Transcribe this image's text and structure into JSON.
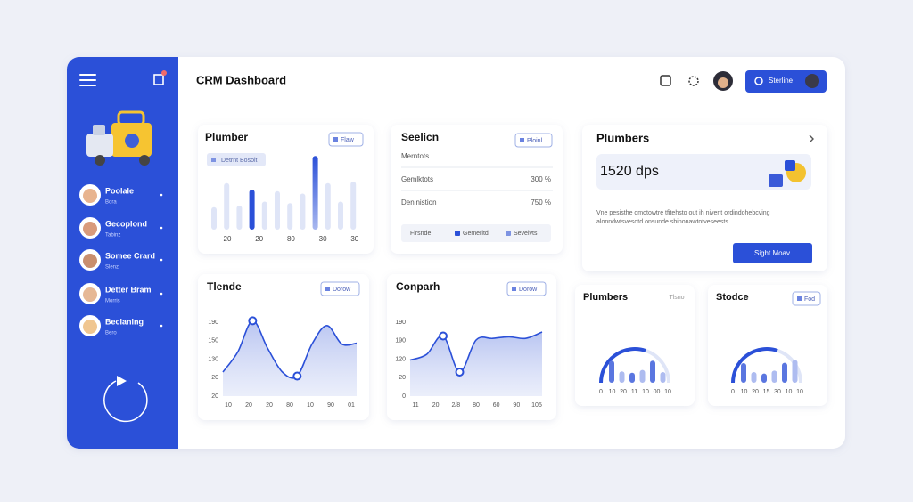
{
  "header": {
    "title": "CRM Dashboard",
    "search_button": "Sterline"
  },
  "sidebar": {
    "contacts": [
      {
        "name": "Poolale",
        "sub": "Bora"
      },
      {
        "name": "Gecoplond",
        "sub": "Tabinz"
      },
      {
        "name": "Somee Crard",
        "sub": "Slenz"
      },
      {
        "name": "Detter Bram",
        "sub": "Morris"
      },
      {
        "name": "Beclaning",
        "sub": "Bero"
      }
    ]
  },
  "plumber": {
    "title": "Plumber",
    "button": "Flaw",
    "chip": "Detrnt Bosolt",
    "bars": [
      28,
      58,
      30,
      50,
      35,
      48,
      33,
      45,
      92,
      58,
      35,
      60
    ],
    "x_labels": [
      "20",
      "20",
      "80",
      "30",
      "30"
    ]
  },
  "selection": {
    "title": "Seelicn",
    "button": "Ploinl",
    "rows": [
      [
        "Merntots"
      ],
      [
        "Gemlktots",
        "300 %"
      ],
      [
        "Deninistion",
        "750 %"
      ]
    ],
    "legend": [
      "Flrsnde",
      "Gemeritd",
      "Sevelvts"
    ]
  },
  "plumbers": {
    "title": "Plumbers",
    "stat": "1520 dps",
    "description": [
      "Vne pesisthe omotowtre tfitehsto out ih nivent ordindohebcving",
      "alonndwtsvesotd onsunde sbinonawtotveseests."
    ],
    "button": "Sight Moav"
  },
  "trend": {
    "title": "Tlende",
    "button": "Dorow",
    "y_labels": [
      "190",
      "150",
      "130",
      "20",
      "20"
    ],
    "x_labels": [
      "10",
      "20",
      "20",
      "80",
      "10",
      "90",
      "01"
    ],
    "line": [
      30,
      55,
      94,
      60,
      30,
      25,
      65,
      88,
      65,
      66
    ]
  },
  "comparison": {
    "title": "Conparh",
    "button": "Dorow",
    "y_labels": [
      "190",
      "190",
      "120",
      "20",
      "0"
    ],
    "x_labels": [
      "11",
      "20",
      "2/8",
      "80",
      "60",
      "90",
      "105"
    ],
    "line": [
      45,
      52,
      75,
      30,
      70,
      72,
      74,
      72,
      80
    ]
  },
  "plumbers_mini": {
    "title": "Plumbers",
    "tag": "Tlsno",
    "bars": [
      62,
      32,
      28,
      36,
      62,
      30
    ],
    "x_labels": [
      "0",
      "10",
      "20",
      "11",
      "10",
      "00",
      "10"
    ]
  },
  "stocke": {
    "title": "Stodce",
    "button": "Fod",
    "bars": [
      55,
      30,
      26,
      34,
      56,
      64
    ],
    "x_labels": [
      "0",
      "10",
      "20",
      "15",
      "30",
      "10",
      "10"
    ]
  }
}
